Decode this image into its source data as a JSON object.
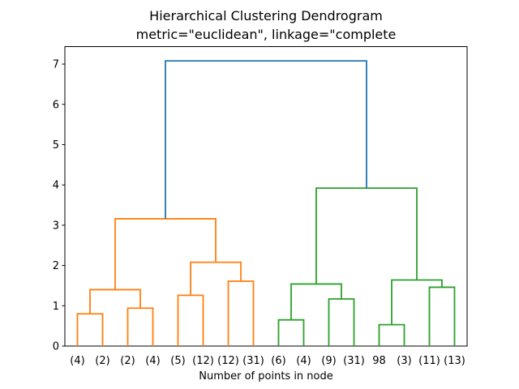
{
  "chart_data": {
    "type": "dendrogram",
    "title": "Hierarchical Clustering Dendrogram",
    "subtitle": "metric=\"euclidean\", linkage=\"complete",
    "xlabel": "Number of points in node",
    "ylabel": "",
    "ylim": [
      0,
      7.434
    ],
    "yticks": [
      0,
      1,
      2,
      3,
      4,
      5,
      6,
      7
    ],
    "grid": false,
    "legend": null,
    "leaf_labels": [
      "(4)",
      "(2)",
      "(2)",
      "(4)",
      "(5)",
      "(12)",
      "(12)",
      "(31)",
      "(6)",
      "(4)",
      "(9)",
      "(31)",
      "98",
      "(3)",
      "(11)",
      "(13)"
    ],
    "links": [
      {
        "id": "L1",
        "children": [
          "leaf0",
          "leaf1"
        ],
        "height": 0.8,
        "color": "#ff7f0e"
      },
      {
        "id": "L2",
        "children": [
          "leaf2",
          "leaf3"
        ],
        "height": 0.94,
        "color": "#ff7f0e"
      },
      {
        "id": "L3",
        "children": [
          "L1",
          "L2"
        ],
        "height": 1.4,
        "color": "#ff7f0e"
      },
      {
        "id": "L4",
        "children": [
          "leaf4",
          "leaf5"
        ],
        "height": 1.26,
        "color": "#ff7f0e"
      },
      {
        "id": "L5",
        "children": [
          "leaf6",
          "leaf7"
        ],
        "height": 1.61,
        "color": "#ff7f0e"
      },
      {
        "id": "L6",
        "children": [
          "L4",
          "L5"
        ],
        "height": 2.08,
        "color": "#ff7f0e"
      },
      {
        "id": "L7",
        "children": [
          "L3",
          "L6"
        ],
        "height": 3.16,
        "color": "#ff7f0e"
      },
      {
        "id": "L8",
        "children": [
          "leaf8",
          "leaf9"
        ],
        "height": 0.65,
        "color": "#2ca02c"
      },
      {
        "id": "L9",
        "children": [
          "leaf10",
          "leaf11"
        ],
        "height": 1.17,
        "color": "#2ca02c"
      },
      {
        "id": "L10",
        "children": [
          "L8",
          "L9"
        ],
        "height": 1.54,
        "color": "#2ca02c"
      },
      {
        "id": "L11",
        "children": [
          "leaf12",
          "leaf13"
        ],
        "height": 0.53,
        "color": "#2ca02c"
      },
      {
        "id": "L12",
        "children": [
          "leaf14",
          "leaf15"
        ],
        "height": 1.46,
        "color": "#2ca02c"
      },
      {
        "id": "L13",
        "children": [
          "L11",
          "L12"
        ],
        "height": 1.64,
        "color": "#2ca02c"
      },
      {
        "id": "L14",
        "children": [
          "L10",
          "L13"
        ],
        "height": 3.92,
        "color": "#2ca02c"
      },
      {
        "id": "L15",
        "children": [
          "L7",
          "L14"
        ],
        "height": 7.08,
        "color": "#1f77b4"
      }
    ],
    "colors": {
      "axis": "#000000",
      "text": "#000000",
      "root_link": "#1f77b4",
      "left_cluster": "#ff7f0e",
      "right_cluster": "#2ca02c"
    }
  }
}
